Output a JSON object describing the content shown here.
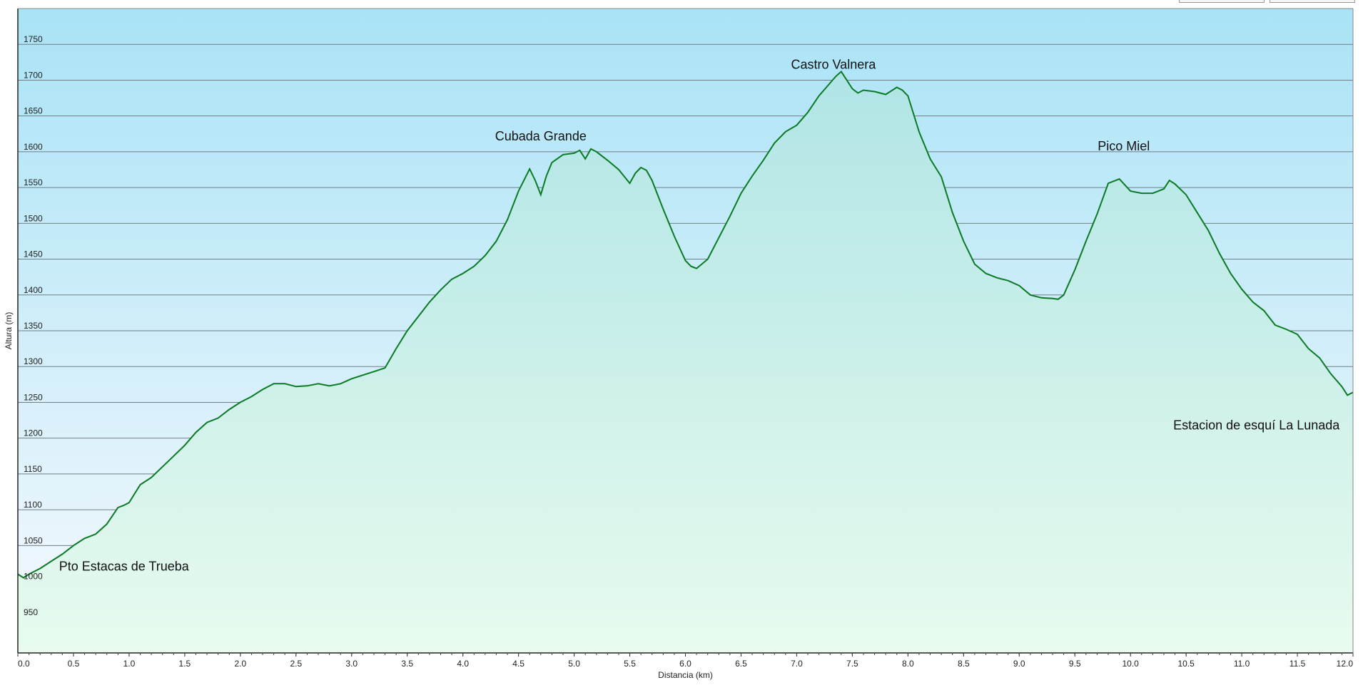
{
  "chart_data": {
    "type": "area",
    "xlabel": "Distancia  (km)",
    "ylabel": "Altura (m)",
    "xlim": [
      0,
      12
    ],
    "ylim": [
      900,
      1800
    ],
    "x_ticks": [
      "0.0",
      "0.5",
      "1.0",
      "1.5",
      "2.0",
      "2.5",
      "3.0",
      "3.5",
      "4.0",
      "4.5",
      "5.0",
      "5.5",
      "6.0",
      "6.5",
      "7.0",
      "7.5",
      "8.0",
      "8.5",
      "9.0",
      "9.5",
      "10.0",
      "10.5",
      "11.0",
      "11.5",
      "12.0"
    ],
    "y_ticks": [
      "950",
      "1000",
      "1050",
      "1100",
      "1150",
      "1200",
      "1250",
      "1300",
      "1350",
      "1400",
      "1450",
      "1500",
      "1550",
      "1600",
      "1650",
      "1700",
      "1750"
    ],
    "grid": true,
    "colors": {
      "line": "#0b7a24",
      "fill_top": "#b0e5e6",
      "fill_bottom": "#e8fbee",
      "bg_top": "#a9e3f6",
      "bg_bottom": "#f7f9fe",
      "grid": "#707e86"
    },
    "series": [
      {
        "x": [
          0.0,
          0.05,
          0.1,
          0.2,
          0.3,
          0.4,
          0.5,
          0.6,
          0.7,
          0.8,
          0.9,
          0.95,
          1.0,
          1.1,
          1.2,
          1.3,
          1.4,
          1.5,
          1.6,
          1.7,
          1.8,
          1.9,
          2.0,
          2.1,
          2.2,
          2.3,
          2.4,
          2.5,
          2.6,
          2.7,
          2.8,
          2.9,
          3.0,
          3.1,
          3.2,
          3.3,
          3.4,
          3.5,
          3.6,
          3.7,
          3.8,
          3.9,
          4.0,
          4.1,
          4.2,
          4.3,
          4.4,
          4.5,
          4.6,
          4.65,
          4.7,
          4.75,
          4.8,
          4.9,
          5.0,
          5.05,
          5.1,
          5.15,
          5.2,
          5.3,
          5.4,
          5.5,
          5.55,
          5.6,
          5.65,
          5.7,
          5.8,
          5.9,
          6.0,
          6.05,
          6.1,
          6.2,
          6.3,
          6.4,
          6.5,
          6.6,
          6.7,
          6.8,
          6.9,
          7.0,
          7.1,
          7.2,
          7.3,
          7.35,
          7.4,
          7.45,
          7.5,
          7.55,
          7.6,
          7.7,
          7.8,
          7.9,
          7.95,
          8.0,
          8.1,
          8.2,
          8.3,
          8.4,
          8.5,
          8.6,
          8.7,
          8.8,
          8.9,
          9.0,
          9.1,
          9.2,
          9.3,
          9.35,
          9.4,
          9.5,
          9.6,
          9.7,
          9.8,
          9.9,
          10.0,
          10.1,
          10.2,
          10.3,
          10.35,
          10.4,
          10.5,
          10.6,
          10.7,
          10.8,
          10.9,
          11.0,
          11.1,
          11.2,
          11.3,
          11.4,
          11.5,
          11.6,
          11.7,
          11.8,
          11.9,
          11.95,
          12.0
        ],
        "y": [
          1010,
          1005,
          1010,
          1018,
          1028,
          1038,
          1050,
          1060,
          1066,
          1080,
          1103,
          1106,
          1110,
          1135,
          1145,
          1160,
          1175,
          1190,
          1208,
          1222,
          1228,
          1240,
          1250,
          1258,
          1268,
          1276,
          1276,
          1272,
          1273,
          1276,
          1273,
          1276,
          1283,
          1288,
          1293,
          1298,
          1325,
          1350,
          1370,
          1390,
          1407,
          1422,
          1430,
          1440,
          1455,
          1475,
          1505,
          1545,
          1576,
          1560,
          1540,
          1566,
          1585,
          1596,
          1598,
          1602,
          1590,
          1604,
          1600,
          1588,
          1575,
          1556,
          1570,
          1578,
          1574,
          1560,
          1520,
          1482,
          1448,
          1440,
          1437,
          1450,
          1480,
          1510,
          1542,
          1566,
          1588,
          1612,
          1628,
          1637,
          1655,
          1678,
          1696,
          1705,
          1712,
          1700,
          1688,
          1682,
          1686,
          1684,
          1680,
          1690,
          1686,
          1678,
          1628,
          1590,
          1565,
          1515,
          1475,
          1443,
          1430,
          1424,
          1420,
          1413,
          1400,
          1396,
          1395,
          1394,
          1400,
          1435,
          1475,
          1513,
          1556,
          1562,
          1545,
          1542,
          1542,
          1548,
          1560,
          1555,
          1540,
          1515,
          1490,
          1458,
          1430,
          1408,
          1390,
          1378,
          1358,
          1352,
          1345,
          1325,
          1312,
          1290,
          1272,
          1260,
          1264
        ]
      }
    ],
    "annotations": [
      {
        "text": "Pto Estacas de Trueba",
        "x": 0.37,
        "y": 1015,
        "anchor": "start"
      },
      {
        "text": "Cubada Grande",
        "x": 4.7,
        "y": 1616,
        "anchor": "middle"
      },
      {
        "text": "Castro Valnera",
        "x": 7.33,
        "y": 1716,
        "anchor": "middle"
      },
      {
        "text": "Pico Miel",
        "x": 9.94,
        "y": 1602,
        "anchor": "middle"
      },
      {
        "text": "Estacion de esquí La Lunada",
        "x": 11.88,
        "y": 1212,
        "anchor": "end"
      }
    ]
  }
}
